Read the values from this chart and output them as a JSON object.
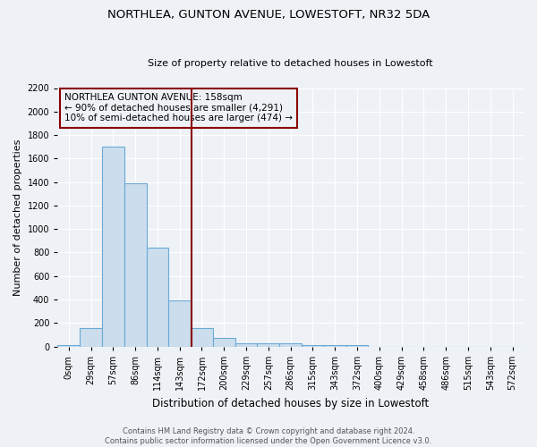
{
  "title1": "NORTHLEA, GUNTON AVENUE, LOWESTOFT, NR32 5DA",
  "title2": "Size of property relative to detached houses in Lowestoft",
  "xlabel": "Distribution of detached houses by size in Lowestoft",
  "ylabel": "Number of detached properties",
  "categories": [
    "0sqm",
    "29sqm",
    "57sqm",
    "86sqm",
    "114sqm",
    "143sqm",
    "172sqm",
    "200sqm",
    "229sqm",
    "257sqm",
    "286sqm",
    "315sqm",
    "343sqm",
    "372sqm",
    "400sqm",
    "429sqm",
    "458sqm",
    "486sqm",
    "515sqm",
    "543sqm",
    "572sqm"
  ],
  "values": [
    15,
    155,
    1700,
    1390,
    840,
    390,
    160,
    70,
    30,
    30,
    30,
    15,
    10,
    10,
    0,
    0,
    0,
    0,
    0,
    0,
    0
  ],
  "bar_color": "#ccdded",
  "bar_edge_color": "#6aaad4",
  "ylim": [
    0,
    2200
  ],
  "yticks": [
    0,
    200,
    400,
    600,
    800,
    1000,
    1200,
    1400,
    1600,
    1800,
    2000,
    2200
  ],
  "annotation_title": "NORTHLEA GUNTON AVENUE: 158sqm",
  "annotation_line1": "← 90% of detached houses are smaller (4,291)",
  "annotation_line2": "10% of semi-detached houses are larger (474) →",
  "footer1": "Contains HM Land Registry data © Crown copyright and database right 2024.",
  "footer2": "Contains public sector information licensed under the Open Government Licence v3.0.",
  "bg_color": "#eef2f7",
  "title1_fontsize": 9.5,
  "title2_fontsize": 8.0,
  "xlabel_fontsize": 8.5,
  "ylabel_fontsize": 8.0,
  "tick_fontsize": 7.0,
  "annotation_fontsize": 7.5,
  "footer_fontsize": 6.0,
  "red_line_color": "#8b0000",
  "annotation_box_edge_color": "#8b0000"
}
